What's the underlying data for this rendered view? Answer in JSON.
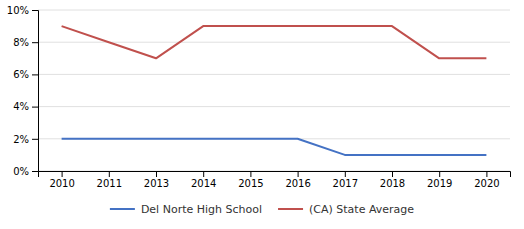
{
  "chart_data": {
    "type": "line",
    "categories": [
      "2010",
      "2011",
      "2013",
      "2014",
      "2015",
      "2016",
      "2017",
      "2018",
      "2019",
      "2020"
    ],
    "series": [
      {
        "name": "Del Norte High School",
        "color": "#4472c4",
        "values": [
          2,
          2,
          2,
          2,
          2,
          2,
          1,
          1,
          1,
          1
        ]
      },
      {
        "name": "(CA) State Average",
        "color": "#c0504d",
        "values": [
          9,
          8,
          7,
          9,
          9,
          9,
          9,
          9,
          7,
          7
        ]
      }
    ],
    "ylim": [
      0,
      10
    ],
    "yticks": [
      {
        "value": 0,
        "label": "0%"
      },
      {
        "value": 2,
        "label": "2%"
      },
      {
        "value": 4,
        "label": "4%"
      },
      {
        "value": 6,
        "label": "6%"
      },
      {
        "value": 8,
        "label": "8%"
      },
      {
        "value": 10,
        "label": "10%"
      }
    ],
    "grid": true,
    "legend": "bottom"
  }
}
